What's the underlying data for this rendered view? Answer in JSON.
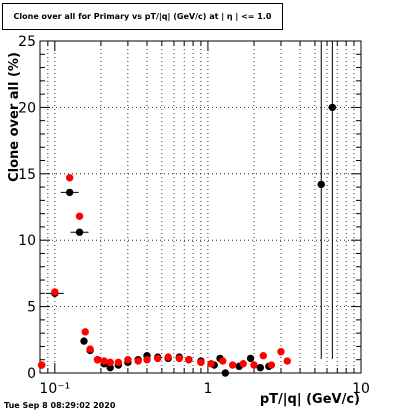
{
  "chart_data": {
    "type": "scatter",
    "title": "Clone  over all for Primary vs pT/|q| (GeV/c) at |  η | <= 1.0",
    "xlabel": "pT/|q| (GeV/c)",
    "ylabel": "Clone  over all (%)",
    "x_scale": "log",
    "xlim": [
      0.08,
      10
    ],
    "ylim": [
      0,
      25
    ],
    "grid": true,
    "y_ticks": [
      0,
      5,
      10,
      15,
      20,
      25
    ],
    "x_ticks": [
      0.1,
      1,
      10
    ],
    "x_tick_labels": [
      "10⁻¹",
      "1",
      "10"
    ],
    "series": [
      {
        "color": "#000000",
        "points": [
          {
            "x": 0.082,
            "y": 0.6
          },
          {
            "x": 0.1,
            "y": 6.0
          },
          {
            "x": 0.125,
            "y": 13.6
          },
          {
            "x": 0.145,
            "y": 10.6
          },
          {
            "x": 0.155,
            "y": 2.4
          },
          {
            "x": 0.17,
            "y": 1.7
          },
          {
            "x": 0.19,
            "y": 1.0
          },
          {
            "x": 0.21,
            "y": 0.7
          },
          {
            "x": 0.23,
            "y": 0.4
          },
          {
            "x": 0.26,
            "y": 0.6
          },
          {
            "x": 0.3,
            "y": 0.8
          },
          {
            "x": 0.35,
            "y": 1.0
          },
          {
            "x": 0.4,
            "y": 1.3
          },
          {
            "x": 0.47,
            "y": 1.2
          },
          {
            "x": 0.55,
            "y": 1.1
          },
          {
            "x": 0.65,
            "y": 1.2
          },
          {
            "x": 0.75,
            "y": 1.0
          },
          {
            "x": 0.9,
            "y": 0.9
          },
          {
            "x": 1.1,
            "y": 0.6
          },
          {
            "x": 1.2,
            "y": 1.1
          },
          {
            "x": 1.3,
            "y": 0.0
          },
          {
            "x": 1.6,
            "y": 0.5
          },
          {
            "x": 1.9,
            "y": 1.1
          },
          {
            "x": 2.2,
            "y": 0.4
          },
          {
            "x": 2.5,
            "y": 0.5
          },
          {
            "x": 5.5,
            "y": 14.2
          },
          {
            "x": 6.5,
            "y": 20.0
          }
        ]
      },
      {
        "color": "#ff0000",
        "points": [
          {
            "x": 0.082,
            "y": 0.6
          },
          {
            "x": 0.1,
            "y": 6.1
          },
          {
            "x": 0.125,
            "y": 14.7
          },
          {
            "x": 0.145,
            "y": 11.8
          },
          {
            "x": 0.158,
            "y": 3.1
          },
          {
            "x": 0.17,
            "y": 1.8
          },
          {
            "x": 0.19,
            "y": 1.0
          },
          {
            "x": 0.21,
            "y": 0.9
          },
          {
            "x": 0.23,
            "y": 0.8
          },
          {
            "x": 0.26,
            "y": 0.8
          },
          {
            "x": 0.3,
            "y": 1.0
          },
          {
            "x": 0.35,
            "y": 0.9
          },
          {
            "x": 0.4,
            "y": 1.0
          },
          {
            "x": 0.47,
            "y": 1.1
          },
          {
            "x": 0.55,
            "y": 1.2
          },
          {
            "x": 0.65,
            "y": 1.1
          },
          {
            "x": 0.75,
            "y": 1.0
          },
          {
            "x": 0.9,
            "y": 0.8
          },
          {
            "x": 1.05,
            "y": 0.7
          },
          {
            "x": 1.25,
            "y": 0.9
          },
          {
            "x": 1.45,
            "y": 0.6
          },
          {
            "x": 1.7,
            "y": 0.7
          },
          {
            "x": 2.0,
            "y": 0.6
          },
          {
            "x": 2.3,
            "y": 1.3
          },
          {
            "x": 2.6,
            "y": 0.6
          },
          {
            "x": 3.0,
            "y": 1.6
          },
          {
            "x": 3.3,
            "y": 0.9
          }
        ]
      }
    ],
    "footer_timestamp": "Tue Sep  8 08:29:02 2020"
  }
}
